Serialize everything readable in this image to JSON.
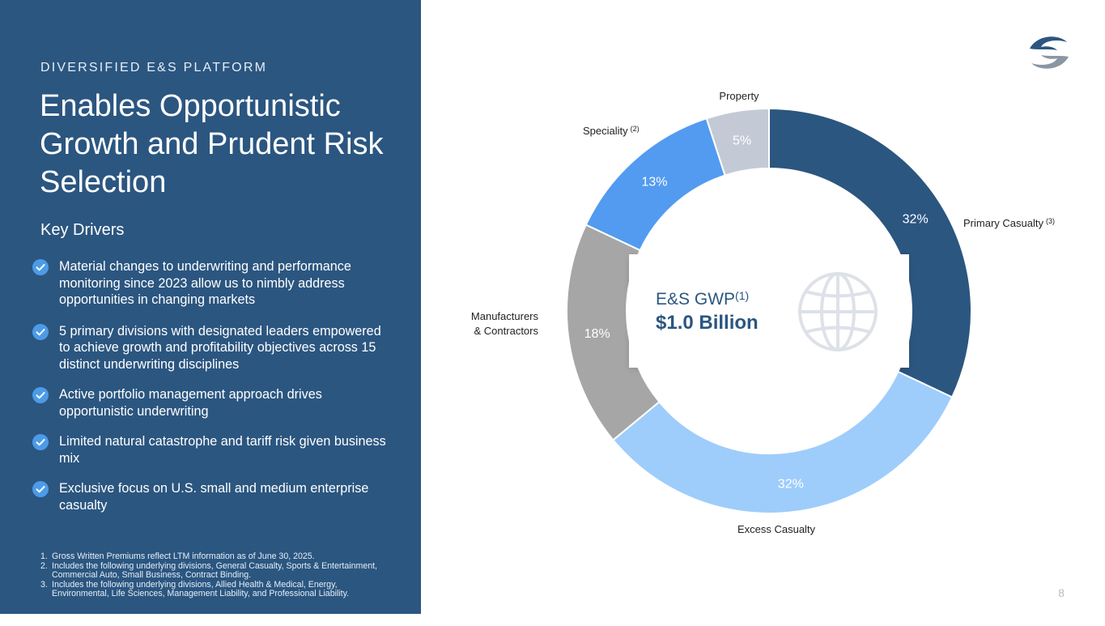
{
  "left": {
    "eyebrow": "DIVERSIFIED E&S PLATFORM",
    "title": "Enables Opportunistic Growth and Prudent Risk Selection",
    "drivers_title": "Key Drivers",
    "drivers": [
      "Material changes to underwriting and performance monitoring since 2023 allow us to nimbly address opportunities in changing markets",
      "5 primary divisions with designated leaders empowered to achieve growth and profitability objectives across 15 distinct underwriting disciplines",
      "Active portfolio management approach drives opportunistic underwriting",
      "Limited natural catastrophe and tariff risk given business mix",
      "Exclusive focus on U.S. small and medium enterprise casualty"
    ],
    "footnotes": [
      {
        "num": "1.",
        "text": "Gross Written Premiums reflect LTM information as of June 30, 2025."
      },
      {
        "num": "2.",
        "text": "Includes the following underlying divisions, General Casualty, Sports & Entertainment, Commercial Auto, Small Business, Contract Binding."
      },
      {
        "num": "3.",
        "text": "Includes the following underlying divisions, Allied Health & Medical, Energy, Environmental, Life Sciences, Management Liability, and Professional Liability."
      }
    ]
  },
  "chart_data": {
    "type": "pie",
    "subtype": "donut",
    "center_label": "E&S GWP",
    "center_label_superscript": "(1)",
    "center_value": "$1.0 Billion",
    "segments": [
      {
        "label": "Primary Casualty",
        "superscript": "(3)",
        "value": 32,
        "value_label": "32%",
        "color": "#2b5680",
        "value_text_color": "#ffffff"
      },
      {
        "label": "Excess Casualty",
        "superscript": "",
        "value": 32,
        "value_label": "32%",
        "color": "#9ecdfb",
        "value_text_color": "#ffffff"
      },
      {
        "label": "Manufacturers",
        "label_line2": "& Contractors",
        "superscript": "",
        "value": 18,
        "value_label": "18%",
        "color": "#a6a6a6",
        "value_text_color": "#ffffff"
      },
      {
        "label": "Speciality",
        "superscript": "(2)",
        "value": 13,
        "value_label": "13%",
        "color": "#529bf0",
        "value_text_color": "#ffffff"
      },
      {
        "label": "Property",
        "superscript": "",
        "value": 5,
        "value_label": "5%",
        "color": "#c3cad6",
        "value_text_color": "#ffffff"
      }
    ]
  },
  "page_number": "8",
  "icons": {
    "check": "check-circle-icon",
    "globe": "globe-icon",
    "logo": "company-logo"
  },
  "colors": {
    "panel": "#2b5680",
    "check": "#4c9be8",
    "center_text": "#2b5680"
  }
}
